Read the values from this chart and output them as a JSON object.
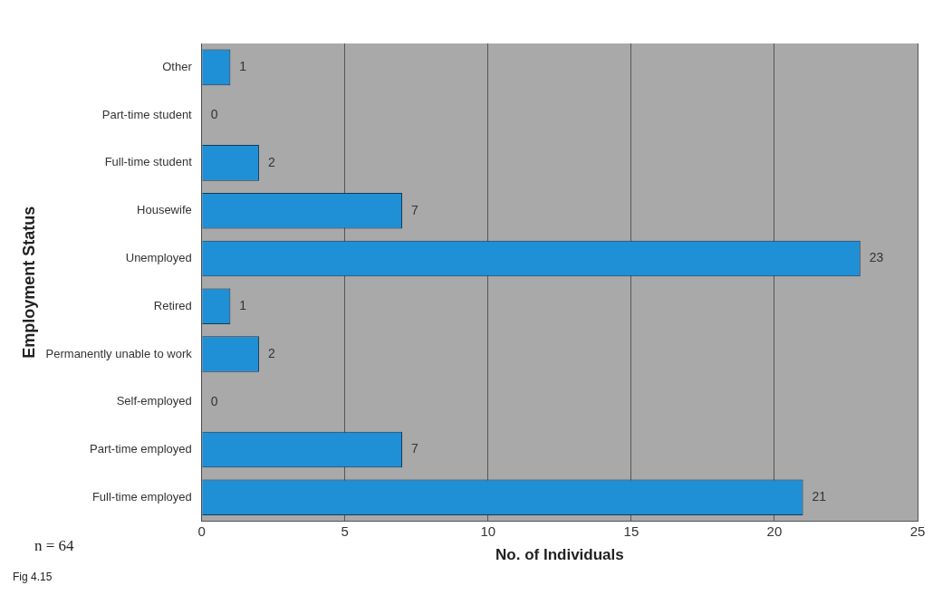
{
  "chart_data": {
    "type": "bar",
    "orientation": "horizontal",
    "xlabel": "No. of Individuals",
    "ylabel": "Employment Status",
    "categories": [
      "Other",
      "Part-time student",
      "Full-time student",
      "Housewife",
      "Unemployed",
      "Retired",
      "Permanently unable to work",
      "Self-employed",
      "Part-time employed",
      "Full-time employed"
    ],
    "values": [
      1,
      0,
      2,
      7,
      23,
      1,
      2,
      0,
      7,
      21
    ],
    "color": "#1f8fd6",
    "xlim": [
      0,
      25
    ],
    "xticks": [
      0,
      5,
      10,
      15,
      20,
      25
    ],
    "grid": "x",
    "legend": false,
    "data_labels": true,
    "annotations": [
      "n = 64",
      "Fig 4.15"
    ]
  }
}
